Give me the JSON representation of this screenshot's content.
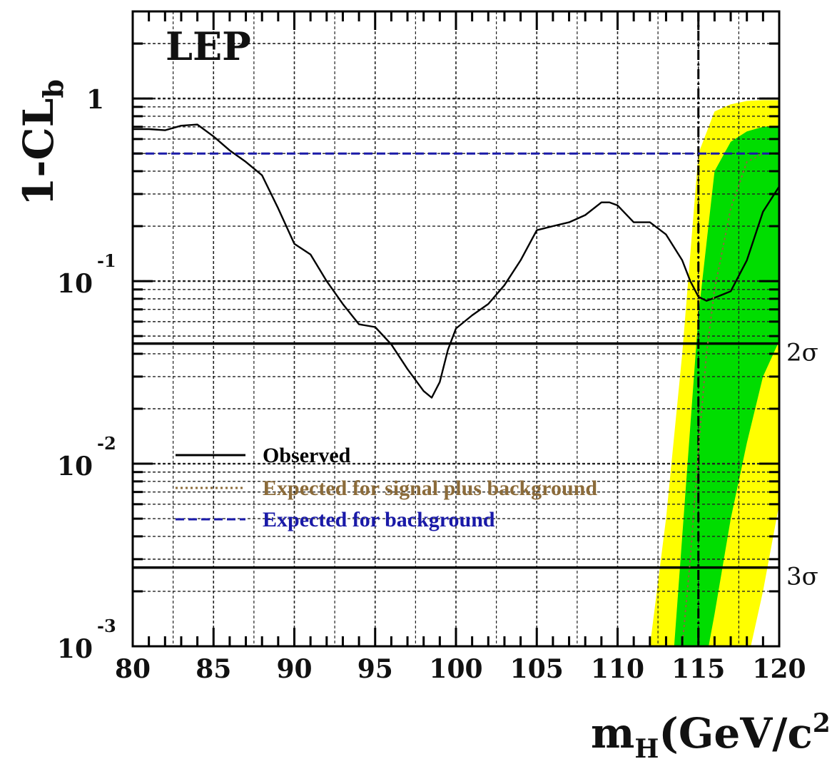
{
  "chart_data": {
    "type": "line",
    "experiment_label": "LEP",
    "ylabel": {
      "main": "1-CL",
      "sub": "b"
    },
    "xlabel": {
      "main": "m",
      "sub": "H",
      "rest": "(GeV/c",
      "sup": "2",
      "close": ")"
    },
    "xlim": [
      80,
      120
    ],
    "ylim": [
      0.001,
      3.0
    ],
    "yscale": "log",
    "grid": true,
    "x_ticks": [
      80,
      85,
      90,
      95,
      100,
      105,
      110,
      115,
      120
    ],
    "x_tick_labels": [
      "80",
      "85",
      "90",
      "95",
      "100",
      "105",
      "110",
      "115",
      "120"
    ],
    "y_ticks": [
      {
        "value": 1,
        "base": "1",
        "exp": ""
      },
      {
        "value": 0.1,
        "base": "10",
        "exp": "-1"
      },
      {
        "value": 0.01,
        "base": "10",
        "exp": "-2"
      },
      {
        "value": 0.001,
        "base": "10",
        "exp": "-3"
      }
    ],
    "sigma_lines": [
      {
        "label": "2σ",
        "value": 0.0455
      },
      {
        "label": "3σ",
        "value": 0.0027
      }
    ],
    "reference_mass": 115,
    "legend": {
      "position": "lower-left",
      "entries": [
        {
          "label": "Observed",
          "color": "#000000",
          "style": "solid"
        },
        {
          "label": "Expected for signal plus background",
          "color": "#8B6B3A",
          "style": "dotted"
        },
        {
          "label": "Expected for background",
          "color": "#1a1aa8",
          "style": "dashed"
        }
      ]
    },
    "series": [
      {
        "name": "Observed",
        "color": "#000000",
        "x": [
          80,
          81,
          82,
          83,
          84,
          85,
          86,
          87,
          88,
          89,
          90,
          91,
          92,
          93,
          94,
          95,
          96,
          97,
          98,
          98.5,
          99,
          99.5,
          100,
          101,
          102,
          103,
          104,
          105,
          106,
          107,
          108,
          109,
          109.5,
          110,
          111,
          112,
          113,
          114,
          114.5,
          115,
          115.5,
          116,
          117,
          118,
          119,
          120
        ],
        "y": [
          0.68,
          0.68,
          0.67,
          0.71,
          0.72,
          0.62,
          0.52,
          0.45,
          0.38,
          0.25,
          0.16,
          0.14,
          0.1,
          0.075,
          0.058,
          0.056,
          0.045,
          0.033,
          0.025,
          0.023,
          0.028,
          0.042,
          0.055,
          0.065,
          0.075,
          0.095,
          0.13,
          0.19,
          0.2,
          0.21,
          0.23,
          0.27,
          0.27,
          0.26,
          0.21,
          0.21,
          0.18,
          0.13,
          0.1,
          0.082,
          0.078,
          0.081,
          0.088,
          0.13,
          0.24,
          0.33
        ]
      },
      {
        "name": "Expected for signal plus background",
        "color": "#8B6B3A",
        "x": [
          113.5,
          114,
          114.5,
          115,
          115.5,
          116,
          117,
          118,
          119,
          120
        ],
        "y": [
          0.0005,
          0.001,
          0.003,
          0.012,
          0.04,
          0.09,
          0.25,
          0.45,
          0.5,
          0.5
        ]
      },
      {
        "name": "Expected for background",
        "color": "#1a1aa8",
        "x": [
          80,
          120
        ],
        "y": [
          0.5,
          0.5
        ]
      }
    ],
    "bands": [
      {
        "name": "yellow",
        "color": "#ffff00",
        "x": [
          112,
          113,
          114,
          115,
          116,
          117,
          118,
          119,
          120
        ],
        "lower": [
          0.0005,
          0.0005,
          0.0005,
          0.0005,
          0.0005,
          0.0005,
          0.0008,
          0.002,
          0.006
        ],
        "upper": [
          0.001,
          0.005,
          0.04,
          0.5,
          0.85,
          0.93,
          0.97,
          0.98,
          0.98
        ]
      },
      {
        "name": "green",
        "color": "#00dd00",
        "x": [
          113.5,
          114,
          115,
          116,
          117,
          118,
          119,
          120
        ],
        "lower": [
          0.0005,
          0.0005,
          0.0005,
          0.0015,
          0.005,
          0.013,
          0.03,
          0.047
        ],
        "upper": [
          0.001,
          0.004,
          0.065,
          0.4,
          0.58,
          0.66,
          0.7,
          0.71
        ]
      }
    ]
  }
}
